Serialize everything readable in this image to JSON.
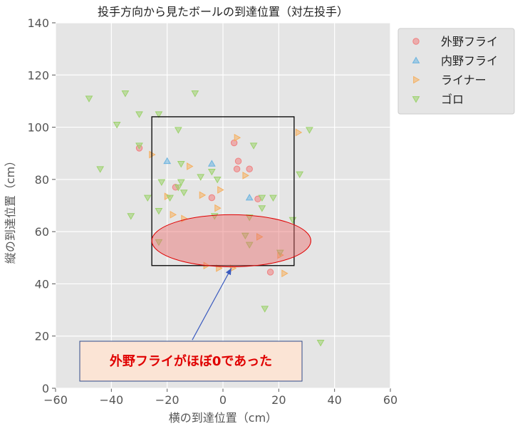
{
  "chart_data": {
    "type": "scatter",
    "title": "投手方向から見たボールの到達位置（対左投手）",
    "xlabel": "横の到達位置（cm）",
    "ylabel": "縦の到達位置（cm）",
    "xlim": [
      -60,
      60
    ],
    "ylim": [
      0,
      140
    ],
    "xticks": [
      "−60",
      "−40",
      "−20",
      "0",
      "20",
      "40",
      "60"
    ],
    "yticks": [
      "0",
      "20",
      "40",
      "60",
      "80",
      "100",
      "120",
      "140"
    ],
    "grid": true,
    "legend_position": "top-right",
    "strike_zone": {
      "x": [
        -25.5,
        25.5
      ],
      "y": [
        47,
        104
      ]
    },
    "highlight_ellipse": {
      "cx": 3,
      "cy": 56.5,
      "rx": 28.5,
      "ry": 10
    },
    "annotation": {
      "text": "外野フライがほぼ0であった",
      "arrow_from": [
        -11,
        18.5
      ],
      "arrow_to": [
        3,
        46
      ]
    },
    "series": [
      {
        "name": "外野フライ",
        "marker": "circle",
        "color": "#f08080",
        "points": [
          [
            -30,
            92
          ],
          [
            4,
            94
          ],
          [
            5,
            84
          ],
          [
            5.5,
            87
          ],
          [
            9.5,
            84
          ],
          [
            -17,
            77
          ],
          [
            -4,
            73
          ],
          [
            12.5,
            72.5
          ],
          [
            17,
            44.5
          ]
        ]
      },
      {
        "name": "内野フライ",
        "marker": "triangle-up",
        "color": "#6cb4e0",
        "points": [
          [
            -20,
            87
          ],
          [
            -4,
            86
          ],
          [
            9.5,
            73
          ]
        ]
      },
      {
        "name": "ライナー",
        "marker": "triangle-right",
        "color": "#f5b060",
        "points": [
          [
            5,
            96
          ],
          [
            27,
            98
          ],
          [
            -25.5,
            89.5
          ],
          [
            -12,
            85
          ],
          [
            8,
            81.5
          ],
          [
            -1,
            76
          ],
          [
            -7.5,
            74
          ],
          [
            -20,
            73.5
          ],
          [
            -2,
            69
          ],
          [
            -18,
            66.5
          ],
          [
            -14,
            65
          ],
          [
            13,
            58
          ],
          [
            20.5,
            51
          ],
          [
            22,
            44
          ],
          [
            -6,
            47
          ],
          [
            -1.5,
            46
          ],
          [
            3.5,
            46
          ]
        ]
      },
      {
        "name": "ゴロ",
        "marker": "triangle-down",
        "color": "#9cd26c",
        "points": [
          [
            -48,
            111
          ],
          [
            -35,
            113
          ],
          [
            -10,
            113
          ],
          [
            -30,
            105
          ],
          [
            -23,
            105
          ],
          [
            -38,
            101
          ],
          [
            -30,
            93
          ],
          [
            -16,
            99
          ],
          [
            11,
            93
          ],
          [
            31,
            99
          ],
          [
            -44,
            84
          ],
          [
            -15,
            86
          ],
          [
            -4,
            83
          ],
          [
            27.5,
            82
          ],
          [
            -22,
            79
          ],
          [
            -15,
            79
          ],
          [
            -8,
            81
          ],
          [
            -2,
            80
          ],
          [
            -16,
            77
          ],
          [
            -27,
            73
          ],
          [
            -19,
            73
          ],
          [
            -14,
            75
          ],
          [
            14,
            73
          ],
          [
            18,
            73
          ],
          [
            -3,
            66
          ],
          [
            -33,
            66
          ],
          [
            -23,
            68
          ],
          [
            14,
            69
          ],
          [
            25,
            64.5
          ],
          [
            9.5,
            65.5
          ],
          [
            8,
            58.5
          ],
          [
            -23,
            56
          ],
          [
            9.5,
            55
          ],
          [
            20.5,
            52
          ],
          [
            15,
            30.5
          ],
          [
            35,
            17.5
          ]
        ]
      }
    ]
  }
}
